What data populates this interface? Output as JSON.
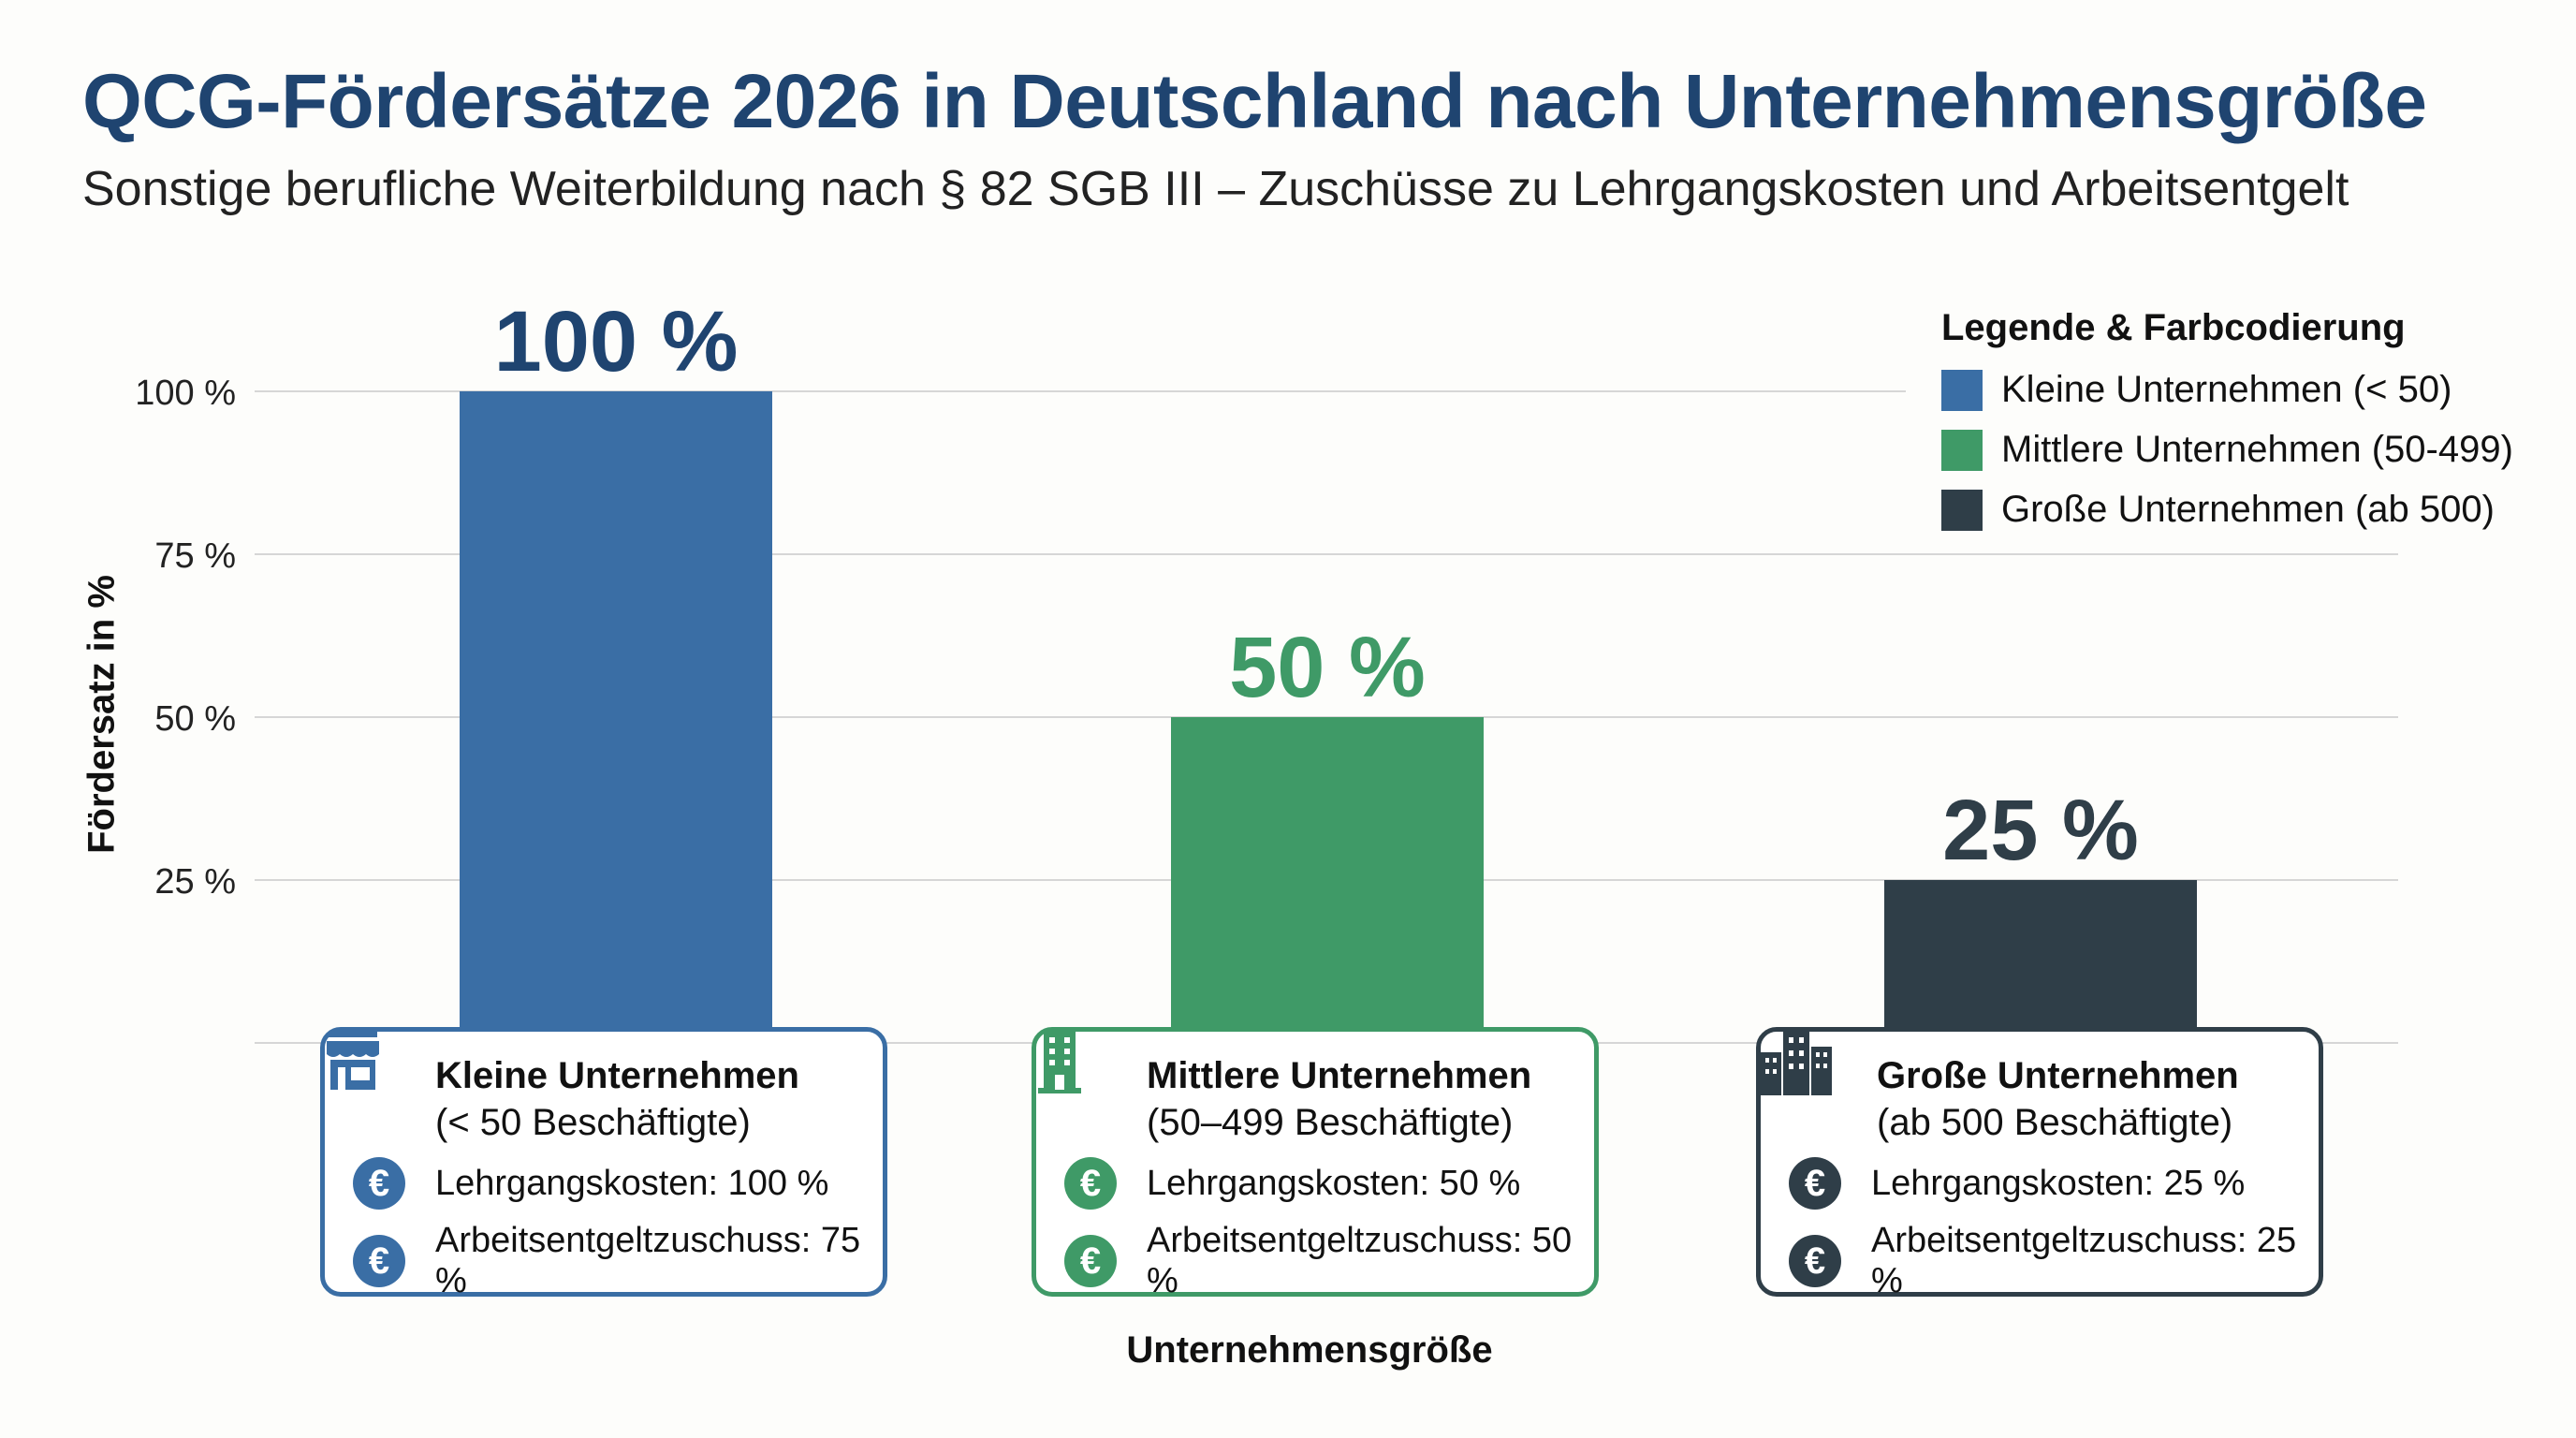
{
  "title": "QCG-Fördersätze 2026 in Deutschland nach Unternehmensgröße",
  "subtitle": "Sonstige berufliche Weiterbildung nach § 82 SGB III – Zuschüsse zu Lehrgangskosten und Arbeitsentgelt",
  "chart_data": {
    "type": "bar",
    "title": "QCG-Fördersätze 2026 in Deutschland nach Unternehmensgröße",
    "ylabel": "Fördersatz in %",
    "xlabel": "Unternehmensgröße",
    "ylim": [
      0,
      100
    ],
    "yticks": [
      25,
      50,
      75,
      100
    ],
    "ytick_labels": [
      "25 %",
      "50 %",
      "75 %",
      "100 %"
    ],
    "grid": true,
    "categories": [
      "Kleine Unternehmen",
      "Mittlere Unternehmen",
      "Große Unternehmen"
    ],
    "values": [
      100,
      50,
      25
    ],
    "value_labels": [
      "100 %",
      "50 %",
      "25 %"
    ],
    "colors": [
      "#3a6ea5",
      "#3f9a67",
      "#2f3e48"
    ],
    "legend_position": "top-right"
  },
  "legend": {
    "title": "Legende & Farbcodierung",
    "items": [
      {
        "label": "Kleine Unternehmen (< 50)",
        "color": "#3a6ea5"
      },
      {
        "label": "Mittlere Unternehmen (50-499)",
        "color": "#3f9a67"
      },
      {
        "label": "Große Unternehmen (ab 500)",
        "color": "#2f3e48"
      }
    ]
  },
  "cards": [
    {
      "name": "Kleine Unternehmen",
      "sub": "(< 50 Beschäftigte)",
      "icon": "store-icon",
      "l1": "Lehrgangskosten: 100 %",
      "l2": "Arbeitsentgeltzuschuss: 75 %",
      "color": "#3a6ea5"
    },
    {
      "name": "Mittlere Unternehmen",
      "sub": "(50–499 Beschäftigte)",
      "icon": "building-icon",
      "l1": "Lehrgangskosten: 50 %",
      "l2": "Arbeitsentgeltzuschuss: 50 %",
      "color": "#3f9a67"
    },
    {
      "name": "Große Unternehmen",
      "sub": "(ab 500 Beschäftigte)",
      "icon": "city-buildings-icon",
      "l1": "Lehrgangskosten: 25 %",
      "l2": "Arbeitsentgeltzuschuss: 25 %",
      "color": "#2f3e48"
    }
  ]
}
